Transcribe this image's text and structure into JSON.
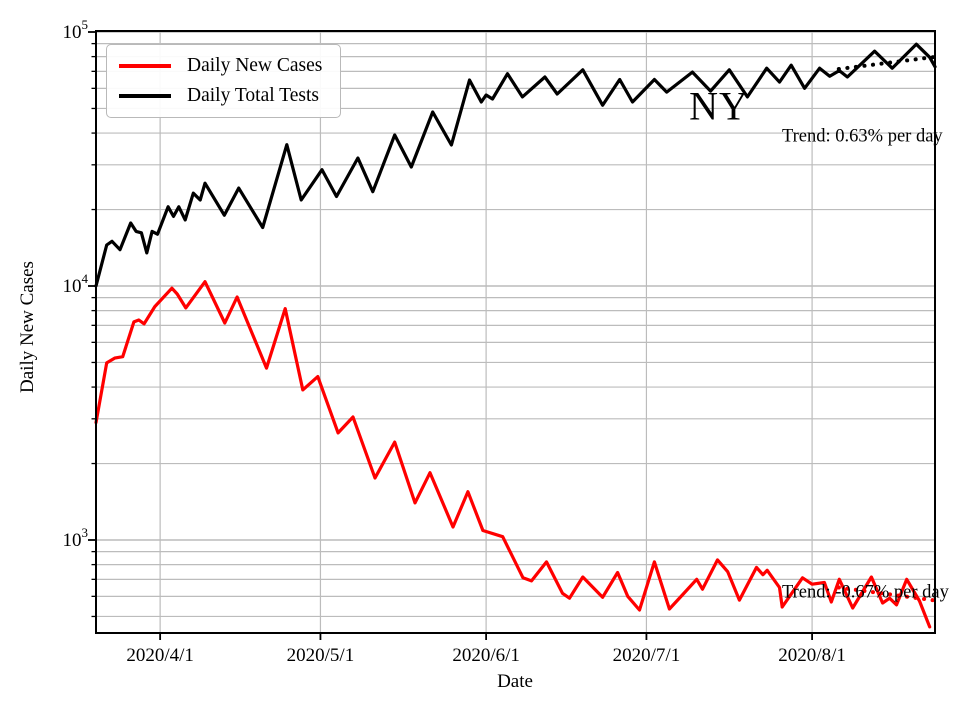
{
  "chart_data": {
    "type": "line",
    "title": "",
    "xlabel": "Date",
    "ylabel": "Daily New Cases",
    "y_scale": "log",
    "ylim": [
      430,
      101000
    ],
    "grid": "on",
    "x_span_days": 157,
    "x_ticks": [
      {
        "day": 12,
        "label": "2020/4/1"
      },
      {
        "day": 42,
        "label": "2020/5/1"
      },
      {
        "day": 73,
        "label": "2020/6/1"
      },
      {
        "day": 103,
        "label": "2020/7/1"
      },
      {
        "day": 134,
        "label": "2020/8/1"
      }
    ],
    "y_ticks": [
      {
        "value": 100000,
        "base": "10",
        "exp": "5"
      },
      {
        "value": 10000,
        "base": "10",
        "exp": "4"
      },
      {
        "value": 1000,
        "base": "10",
        "exp": "3"
      }
    ],
    "legend": {
      "position": "upper-left"
    },
    "series": [
      {
        "name": "Daily New Cases",
        "color": "#ff0000",
        "points": [
          [
            0,
            2900
          ],
          [
            2,
            4980
          ],
          [
            3.5,
            5200
          ],
          [
            5,
            5270
          ],
          [
            7.1,
            7220
          ],
          [
            8,
            7350
          ],
          [
            9,
            7100
          ],
          [
            11,
            8300
          ],
          [
            14.2,
            9800
          ],
          [
            15.2,
            9300
          ],
          [
            16.8,
            8200
          ],
          [
            20.4,
            10400
          ],
          [
            24.1,
            7150
          ],
          [
            26.4,
            9050
          ],
          [
            31.9,
            4750
          ],
          [
            35.4,
            8150
          ],
          [
            38.7,
            3900
          ],
          [
            41.5,
            4400
          ],
          [
            45.3,
            2640
          ],
          [
            48.1,
            3050
          ],
          [
            52.2,
            1755
          ],
          [
            55.9,
            2430
          ],
          [
            59.7,
            1400
          ],
          [
            62.5,
            1840
          ],
          [
            66.8,
            1125
          ],
          [
            69.6,
            1550
          ],
          [
            72.4,
            1090
          ],
          [
            76.1,
            1030
          ],
          [
            79.9,
            710
          ],
          [
            81.5,
            690
          ],
          [
            84.3,
            820
          ],
          [
            87.3,
            617
          ],
          [
            88.6,
            590
          ],
          [
            91.1,
            715
          ],
          [
            94.8,
            595
          ],
          [
            97.6,
            745
          ],
          [
            99.5,
            600
          ],
          [
            101.7,
            530
          ],
          [
            104.5,
            820
          ],
          [
            107.3,
            535
          ],
          [
            109.8,
            610
          ],
          [
            112.4,
            700
          ],
          [
            113.5,
            640
          ],
          [
            116.3,
            835
          ],
          [
            118.2,
            750
          ],
          [
            120.4,
            580
          ],
          [
            123.6,
            780
          ],
          [
            124.8,
            730
          ],
          [
            125.6,
            760
          ],
          [
            127.9,
            650
          ],
          [
            128.4,
            545
          ],
          [
            132.2,
            710
          ],
          [
            134,
            670
          ],
          [
            136.3,
            680
          ],
          [
            137.6,
            570
          ],
          [
            139.1,
            700
          ],
          [
            141.6,
            540
          ],
          [
            145.1,
            715
          ],
          [
            147.2,
            565
          ],
          [
            148.5,
            590
          ],
          [
            149.8,
            555
          ],
          [
            151.7,
            700
          ],
          [
            154.1,
            575
          ],
          [
            156,
            455
          ]
        ]
      },
      {
        "name": "Daily Total Tests",
        "color": "#000000",
        "points": [
          [
            0,
            10000
          ],
          [
            2,
            14500
          ],
          [
            3,
            15000
          ],
          [
            4.5,
            13900
          ],
          [
            6.5,
            17700
          ],
          [
            7.5,
            16400
          ],
          [
            8.5,
            16200
          ],
          [
            9.5,
            13500
          ],
          [
            10.5,
            16400
          ],
          [
            11.5,
            16000
          ],
          [
            13.5,
            20500
          ],
          [
            14.5,
            18800
          ],
          [
            15.5,
            20500
          ],
          [
            16.7,
            18200
          ],
          [
            18.2,
            23200
          ],
          [
            19.5,
            21800
          ],
          [
            20.4,
            25400
          ],
          [
            24,
            19000
          ],
          [
            26.7,
            24300
          ],
          [
            31.2,
            17000
          ],
          [
            35.7,
            36000
          ],
          [
            38.4,
            21800
          ],
          [
            42.3,
            28700
          ],
          [
            45,
            22500
          ],
          [
            49,
            31900
          ],
          [
            51.8,
            23500
          ],
          [
            55.9,
            39300
          ],
          [
            59,
            29400
          ],
          [
            63,
            48400
          ],
          [
            66.5,
            35900
          ],
          [
            69.9,
            64700
          ],
          [
            72.1,
            53000
          ],
          [
            73,
            56500
          ],
          [
            74.2,
            54500
          ],
          [
            77,
            68500
          ],
          [
            79.8,
            55500
          ],
          [
            84,
            66500
          ],
          [
            86.3,
            57000
          ],
          [
            91.1,
            71000
          ],
          [
            94.8,
            51500
          ],
          [
            98,
            65000
          ],
          [
            100.4,
            53000
          ],
          [
            104.5,
            65000
          ],
          [
            106.8,
            58000
          ],
          [
            111.6,
            69500
          ],
          [
            115,
            58500
          ],
          [
            118.5,
            71000
          ],
          [
            121.9,
            55500
          ],
          [
            125.5,
            72000
          ],
          [
            127.9,
            63500
          ],
          [
            130.1,
            74000
          ],
          [
            132.6,
            60000
          ],
          [
            135.4,
            72000
          ],
          [
            137.3,
            67000
          ],
          [
            139.1,
            70500
          ],
          [
            140.6,
            66500
          ],
          [
            145.7,
            84000
          ],
          [
            149,
            72000
          ],
          [
            153.5,
            89500
          ],
          [
            156,
            79500
          ],
          [
            157,
            73000
          ]
        ]
      }
    ],
    "trend_lines": [
      {
        "series": "Daily Total Tests",
        "label": "Trend: 0.63% per day",
        "pct_per_day": 0.63,
        "color": "#000000",
        "style": "dotted",
        "points": [
          [
            139,
            71500
          ],
          [
            157,
            79800
          ]
        ]
      },
      {
        "series": "Daily New Cases",
        "label": "Trend: -0.67% per day",
        "pct_per_day": -0.67,
        "color": "#ff0000",
        "style": "dotted",
        "points": [
          [
            139,
            650
          ],
          [
            157,
            578
          ]
        ]
      }
    ],
    "annotations": [
      {
        "text": "NY",
        "x": 719,
        "y": 106
      }
    ]
  }
}
